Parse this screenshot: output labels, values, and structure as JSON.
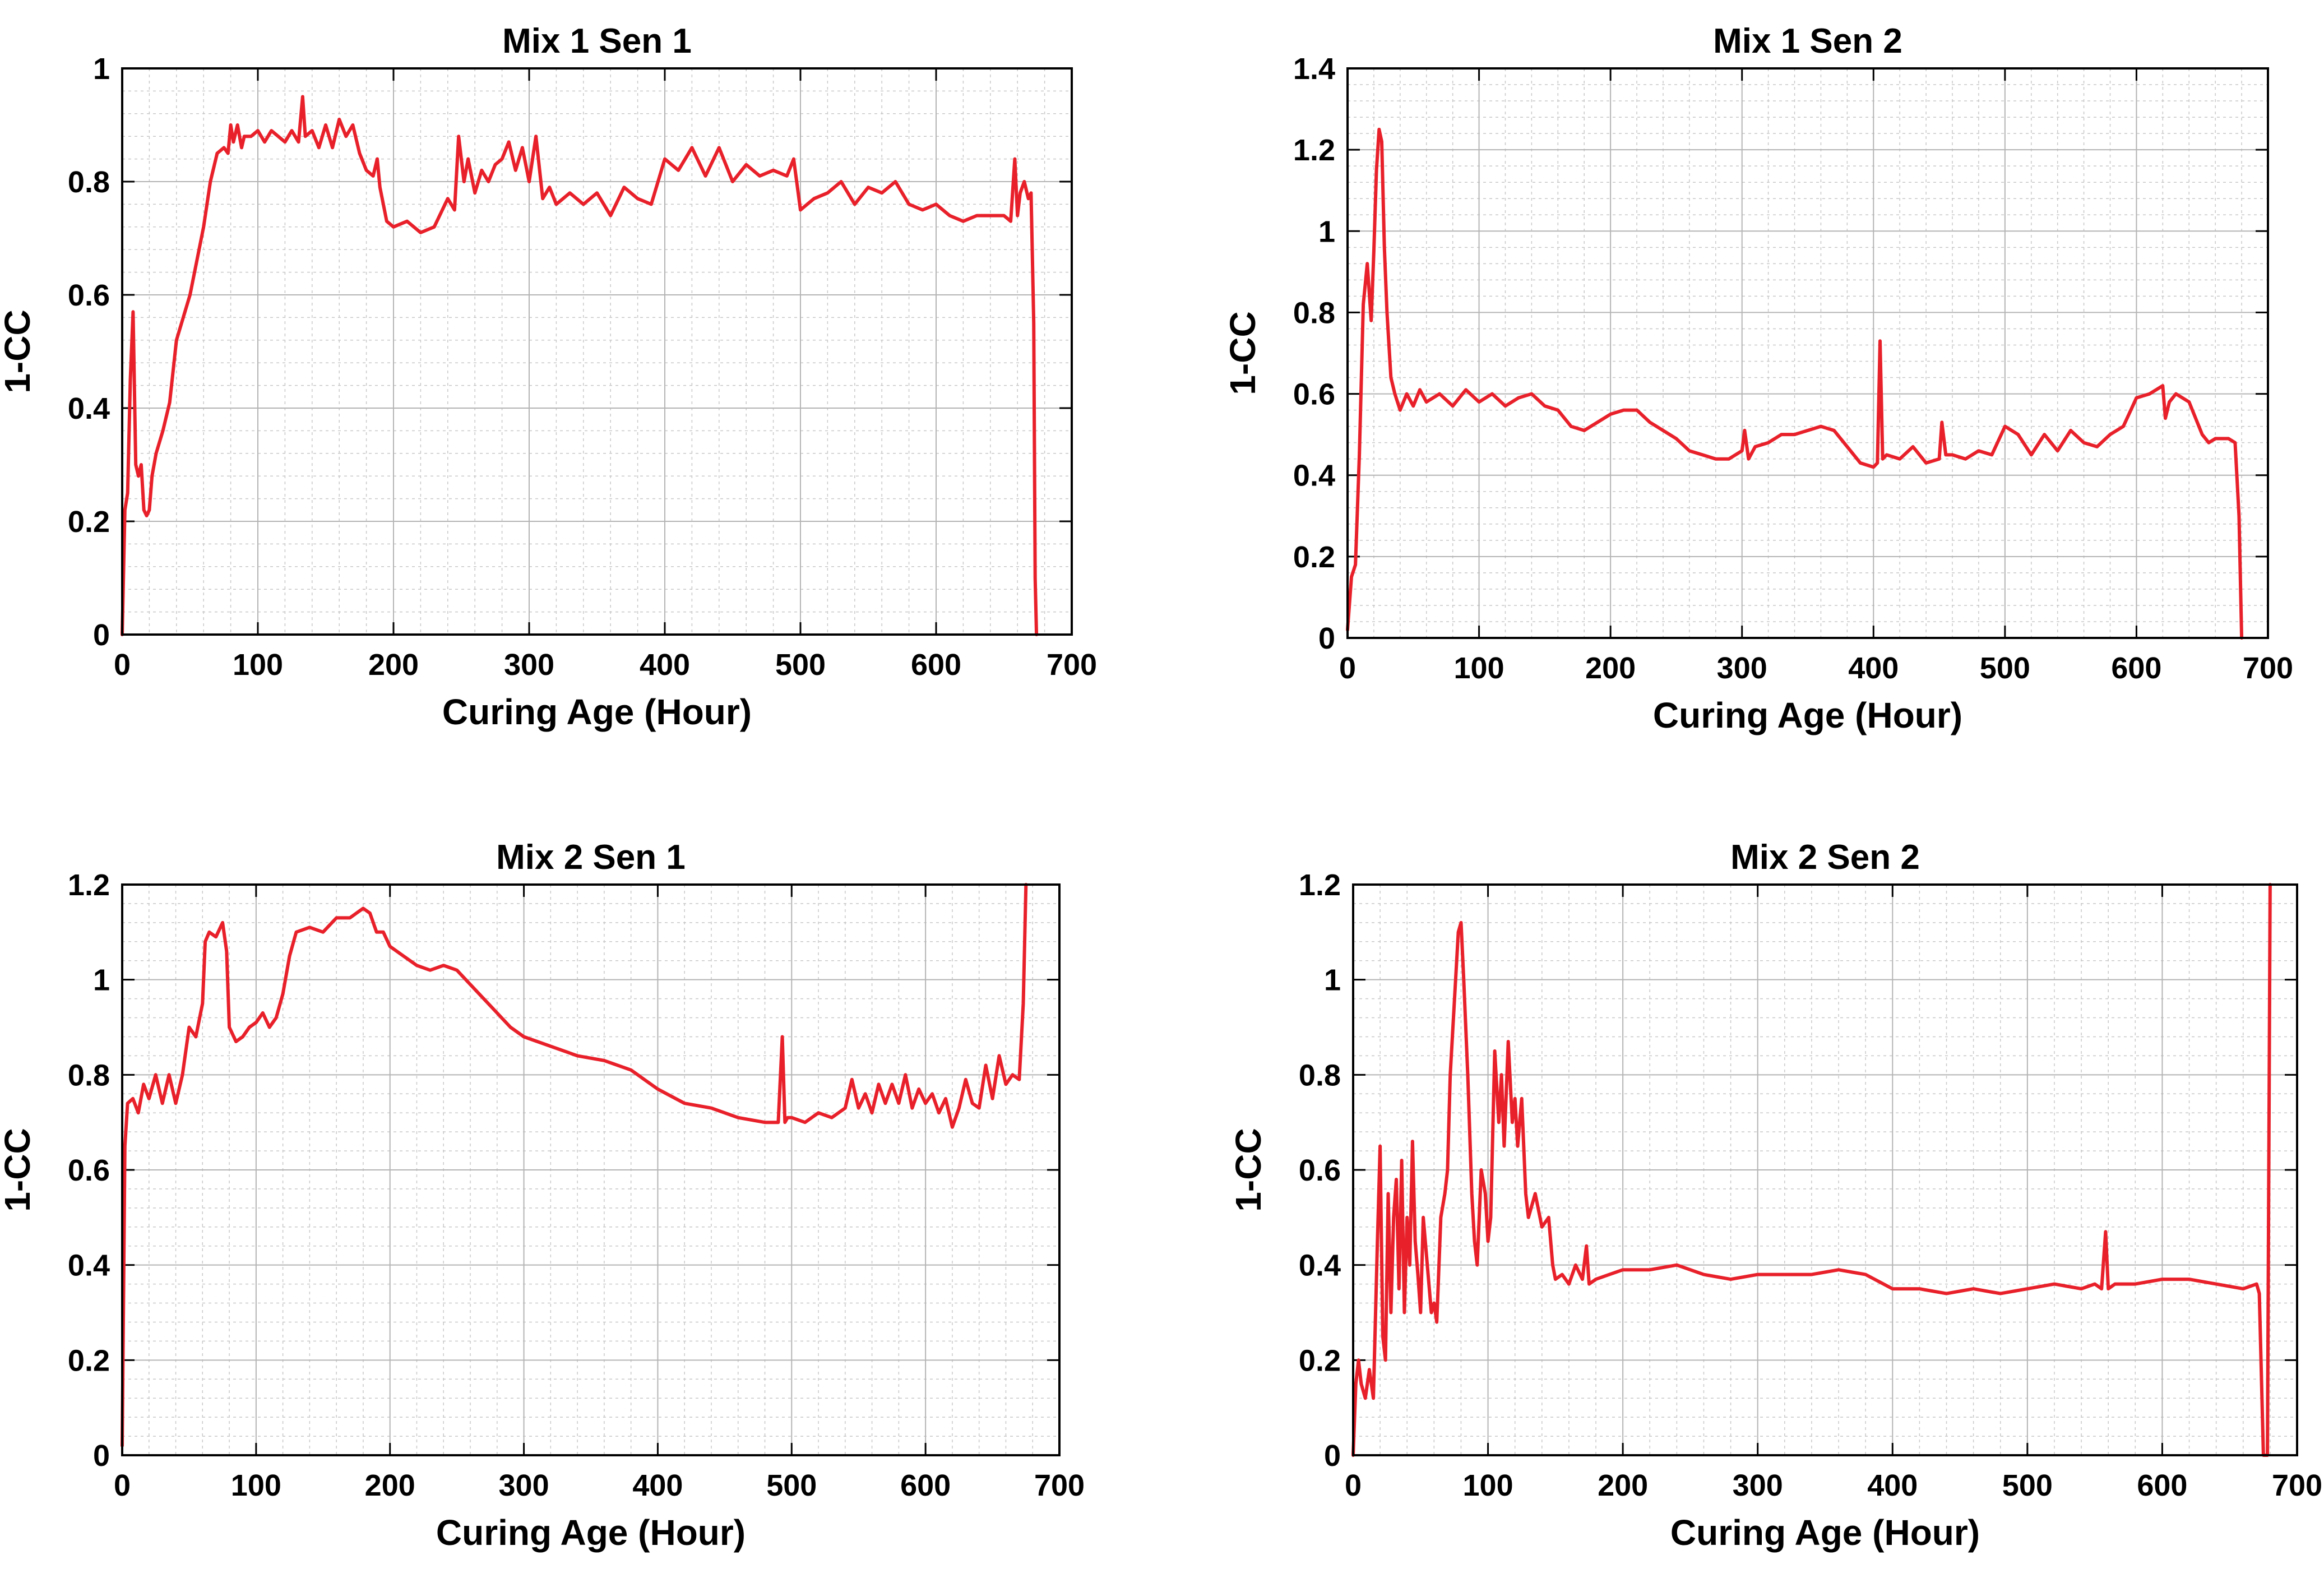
{
  "line_color": "#e8202a",
  "chart_data": [
    {
      "type": "line",
      "title": "Mix 1 Sen 1",
      "xlabel": "Curing Age (Hour)",
      "ylabel": "1-CC",
      "xlim": [
        0,
        700
      ],
      "ylim": [
        0,
        1
      ],
      "xticks": [
        0,
        100,
        200,
        300,
        400,
        500,
        600,
        700
      ],
      "yticks": [
        0,
        0.2,
        0.4,
        0.6,
        0.8,
        1
      ],
      "ytick_labels": [
        "0",
        "0.2",
        "0.4",
        "0.6",
        "0.8",
        "1"
      ],
      "grid": true,
      "series": [
        {
          "name": "1-CC",
          "x": [
            0,
            2,
            4,
            6,
            8,
            10,
            12,
            14,
            16,
            18,
            20,
            22,
            25,
            30,
            35,
            40,
            45,
            50,
            55,
            60,
            65,
            70,
            75,
            78,
            80,
            82,
            85,
            88,
            90,
            95,
            100,
            105,
            110,
            115,
            120,
            125,
            130,
            133,
            135,
            140,
            145,
            150,
            155,
            160,
            165,
            170,
            175,
            180,
            185,
            188,
            190,
            195,
            200,
            210,
            220,
            230,
            240,
            245,
            248,
            252,
            255,
            260,
            265,
            270,
            275,
            280,
            285,
            290,
            295,
            300,
            305,
            310,
            315,
            320,
            330,
            340,
            350,
            360,
            370,
            380,
            390,
            400,
            410,
            420,
            430,
            440,
            450,
            460,
            470,
            480,
            490,
            495,
            500,
            510,
            520,
            530,
            540,
            550,
            560,
            570,
            580,
            590,
            600,
            610,
            620,
            630,
            640,
            650,
            655,
            658,
            660,
            662,
            665,
            668,
            670,
            672,
            673,
            674
          ],
          "y": [
            0.0,
            0.22,
            0.25,
            0.45,
            0.57,
            0.3,
            0.28,
            0.3,
            0.22,
            0.21,
            0.22,
            0.28,
            0.32,
            0.36,
            0.41,
            0.52,
            0.56,
            0.6,
            0.66,
            0.72,
            0.8,
            0.85,
            0.86,
            0.85,
            0.9,
            0.87,
            0.9,
            0.86,
            0.88,
            0.88,
            0.89,
            0.87,
            0.89,
            0.88,
            0.87,
            0.89,
            0.87,
            0.95,
            0.88,
            0.89,
            0.86,
            0.9,
            0.86,
            0.91,
            0.88,
            0.9,
            0.85,
            0.82,
            0.81,
            0.84,
            0.79,
            0.73,
            0.72,
            0.73,
            0.71,
            0.72,
            0.77,
            0.75,
            0.88,
            0.8,
            0.84,
            0.78,
            0.82,
            0.8,
            0.83,
            0.84,
            0.87,
            0.82,
            0.86,
            0.8,
            0.88,
            0.77,
            0.79,
            0.76,
            0.78,
            0.76,
            0.78,
            0.74,
            0.79,
            0.77,
            0.76,
            0.84,
            0.82,
            0.86,
            0.81,
            0.86,
            0.8,
            0.83,
            0.81,
            0.82,
            0.81,
            0.84,
            0.75,
            0.77,
            0.78,
            0.8,
            0.76,
            0.79,
            0.78,
            0.8,
            0.76,
            0.75,
            0.76,
            0.74,
            0.73,
            0.74,
            0.74,
            0.74,
            0.73,
            0.84,
            0.74,
            0.78,
            0.8,
            0.77,
            0.78,
            0.55,
            0.1,
            0.0
          ]
        }
      ]
    },
    {
      "type": "line",
      "title": "Mix 1 Sen 2",
      "xlabel": "Curing Age (Hour)",
      "ylabel": "1-CC",
      "xlim": [
        0,
        700
      ],
      "ylim": [
        0,
        1.4
      ],
      "xticks": [
        0,
        100,
        200,
        300,
        400,
        500,
        600,
        700
      ],
      "yticks": [
        0,
        0.2,
        0.4,
        0.6,
        0.8,
        1,
        1.2,
        1.4
      ],
      "ytick_labels": [
        "0",
        "0.2",
        "0.4",
        "0.6",
        "0.8",
        "1",
        "1.2",
        "1.4"
      ],
      "grid": true,
      "series": [
        {
          "name": "1-CC",
          "x": [
            0,
            3,
            6,
            9,
            12,
            15,
            18,
            20,
            22,
            24,
            26,
            28,
            30,
            33,
            36,
            40,
            45,
            50,
            55,
            60,
            70,
            80,
            90,
            100,
            110,
            120,
            130,
            140,
            150,
            160,
            170,
            180,
            190,
            200,
            210,
            220,
            230,
            240,
            250,
            260,
            270,
            280,
            290,
            300,
            302,
            305,
            310,
            320,
            330,
            340,
            350,
            360,
            370,
            380,
            390,
            400,
            403,
            405,
            407,
            410,
            420,
            430,
            440,
            450,
            452,
            455,
            460,
            470,
            480,
            490,
            500,
            510,
            520,
            530,
            540,
            550,
            560,
            570,
            580,
            590,
            600,
            610,
            620,
            622,
            625,
            630,
            640,
            650,
            655,
            660,
            670,
            675,
            678,
            680
          ],
          "y": [
            0.02,
            0.15,
            0.18,
            0.45,
            0.82,
            0.92,
            0.78,
            0.95,
            1.15,
            1.25,
            1.22,
            0.96,
            0.8,
            0.64,
            0.6,
            0.56,
            0.6,
            0.57,
            0.61,
            0.58,
            0.6,
            0.57,
            0.61,
            0.58,
            0.6,
            0.57,
            0.59,
            0.6,
            0.57,
            0.56,
            0.52,
            0.51,
            0.53,
            0.55,
            0.56,
            0.56,
            0.53,
            0.51,
            0.49,
            0.46,
            0.45,
            0.44,
            0.44,
            0.46,
            0.51,
            0.44,
            0.47,
            0.48,
            0.5,
            0.5,
            0.51,
            0.52,
            0.51,
            0.47,
            0.43,
            0.42,
            0.43,
            0.73,
            0.44,
            0.45,
            0.44,
            0.47,
            0.43,
            0.44,
            0.53,
            0.45,
            0.45,
            0.44,
            0.46,
            0.45,
            0.52,
            0.5,
            0.45,
            0.5,
            0.46,
            0.51,
            0.48,
            0.47,
            0.5,
            0.52,
            0.59,
            0.6,
            0.62,
            0.54,
            0.58,
            0.6,
            0.58,
            0.5,
            0.48,
            0.49,
            0.49,
            0.48,
            0.3,
            0.0
          ]
        }
      ]
    },
    {
      "type": "line",
      "title": "Mix 2 Sen 1",
      "xlabel": "Curing Age (Hour)",
      "ylabel": "1-CC",
      "xlim": [
        0,
        700
      ],
      "ylim": [
        0,
        1.2
      ],
      "xticks": [
        0,
        100,
        200,
        300,
        400,
        500,
        600,
        700
      ],
      "yticks": [
        0,
        0.2,
        0.4,
        0.6,
        0.8,
        1,
        1.2
      ],
      "ytick_labels": [
        "0",
        "0.2",
        "0.4",
        "0.6",
        "0.8",
        "1",
        "1.2"
      ],
      "grid": true,
      "series": [
        {
          "name": "1-CC",
          "x": [
            0,
            2,
            4,
            8,
            12,
            16,
            20,
            25,
            30,
            35,
            40,
            45,
            50,
            55,
            60,
            62,
            65,
            70,
            75,
            78,
            80,
            85,
            90,
            95,
            100,
            105,
            110,
            115,
            120,
            125,
            130,
            140,
            150,
            160,
            170,
            180,
            185,
            190,
            195,
            200,
            210,
            220,
            230,
            240,
            250,
            260,
            270,
            280,
            290,
            300,
            320,
            340,
            360,
            380,
            400,
            420,
            440,
            460,
            480,
            490,
            493,
            495,
            497,
            500,
            510,
            520,
            530,
            540,
            545,
            550,
            555,
            560,
            565,
            570,
            575,
            580,
            585,
            590,
            595,
            600,
            605,
            610,
            615,
            620,
            625,
            630,
            635,
            640,
            645,
            650,
            655,
            660,
            665,
            670,
            673,
            675
          ],
          "y": [
            0.02,
            0.65,
            0.74,
            0.75,
            0.72,
            0.78,
            0.75,
            0.8,
            0.74,
            0.8,
            0.74,
            0.8,
            0.9,
            0.88,
            0.95,
            1.08,
            1.1,
            1.09,
            1.12,
            1.06,
            0.9,
            0.87,
            0.88,
            0.9,
            0.91,
            0.93,
            0.9,
            0.92,
            0.97,
            1.05,
            1.1,
            1.11,
            1.1,
            1.13,
            1.13,
            1.15,
            1.14,
            1.1,
            1.1,
            1.07,
            1.05,
            1.03,
            1.02,
            1.03,
            1.02,
            0.99,
            0.96,
            0.93,
            0.9,
            0.88,
            0.86,
            0.84,
            0.83,
            0.81,
            0.77,
            0.74,
            0.73,
            0.71,
            0.7,
            0.7,
            0.88,
            0.7,
            0.71,
            0.71,
            0.7,
            0.72,
            0.71,
            0.73,
            0.79,
            0.73,
            0.76,
            0.72,
            0.78,
            0.74,
            0.78,
            0.74,
            0.8,
            0.73,
            0.77,
            0.74,
            0.76,
            0.72,
            0.75,
            0.69,
            0.73,
            0.79,
            0.74,
            0.73,
            0.82,
            0.75,
            0.84,
            0.78,
            0.8,
            0.79,
            0.95,
            1.2
          ]
        }
      ]
    },
    {
      "type": "line",
      "title": "Mix 2 Sen 2",
      "xlabel": "Curing Age (Hour)",
      "ylabel": "1-CC",
      "xlim": [
        0,
        700
      ],
      "ylim": [
        0,
        1.2
      ],
      "xticks": [
        0,
        100,
        200,
        300,
        400,
        500,
        600,
        700
      ],
      "yticks": [
        0,
        0.2,
        0.4,
        0.6,
        0.8,
        1,
        1.2
      ],
      "ytick_labels": [
        "0",
        "0.2",
        "0.4",
        "0.6",
        "0.8",
        "1",
        "1.2"
      ],
      "grid": true,
      "series": [
        {
          "name": "1-CC",
          "x": [
            0,
            2,
            4,
            6,
            9,
            12,
            15,
            18,
            20,
            22,
            24,
            26,
            28,
            30,
            32,
            34,
            36,
            38,
            40,
            42,
            44,
            46,
            48,
            50,
            52,
            55,
            58,
            60,
            62,
            65,
            68,
            70,
            72,
            75,
            78,
            80,
            82,
            85,
            88,
            90,
            92,
            95,
            98,
            100,
            102,
            105,
            108,
            110,
            112,
            115,
            118,
            120,
            122,
            125,
            128,
            130,
            135,
            140,
            145,
            148,
            150,
            155,
            160,
            165,
            170,
            173,
            175,
            180,
            190,
            200,
            220,
            240,
            260,
            280,
            300,
            320,
            340,
            360,
            380,
            400,
            420,
            440,
            460,
            480,
            500,
            520,
            540,
            550,
            555,
            558,
            560,
            565,
            580,
            600,
            620,
            640,
            660,
            670,
            672,
            675,
            678,
            680
          ],
          "y": [
            0.0,
            0.15,
            0.2,
            0.15,
            0.12,
            0.18,
            0.12,
            0.45,
            0.65,
            0.25,
            0.2,
            0.55,
            0.3,
            0.5,
            0.58,
            0.35,
            0.62,
            0.3,
            0.5,
            0.4,
            0.66,
            0.45,
            0.38,
            0.3,
            0.5,
            0.4,
            0.3,
            0.32,
            0.28,
            0.5,
            0.55,
            0.6,
            0.8,
            0.95,
            1.1,
            1.12,
            1.0,
            0.8,
            0.55,
            0.45,
            0.4,
            0.6,
            0.55,
            0.45,
            0.5,
            0.85,
            0.7,
            0.8,
            0.65,
            0.87,
            0.7,
            0.75,
            0.65,
            0.75,
            0.55,
            0.5,
            0.55,
            0.48,
            0.5,
            0.4,
            0.37,
            0.38,
            0.36,
            0.4,
            0.37,
            0.44,
            0.36,
            0.37,
            0.38,
            0.39,
            0.39,
            0.4,
            0.38,
            0.37,
            0.38,
            0.38,
            0.38,
            0.39,
            0.38,
            0.35,
            0.35,
            0.34,
            0.35,
            0.34,
            0.35,
            0.36,
            0.35,
            0.36,
            0.35,
            0.47,
            0.35,
            0.36,
            0.36,
            0.37,
            0.37,
            0.36,
            0.35,
            0.36,
            0.34,
            0.0,
            0.0,
            1.2
          ]
        }
      ]
    }
  ]
}
